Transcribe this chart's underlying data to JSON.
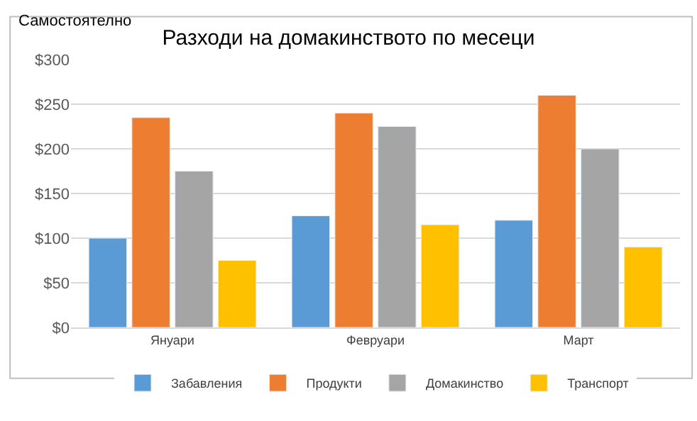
{
  "chart_data": {
    "type": "bar",
    "title": "Разходи на домакинството по месеци",
    "categories": [
      "Януари",
      "Февруари",
      "Март"
    ],
    "series": [
      {
        "name": "Забавления",
        "color": "#5b9bd5",
        "values": [
          100,
          125,
          120
        ]
      },
      {
        "name": "Продукти",
        "color": "#ed7d31",
        "values": [
          235,
          240,
          260
        ]
      },
      {
        "name": "Домакинство",
        "color": "#a5a5a5",
        "values": [
          175,
          225,
          200
        ]
      },
      {
        "name": "Транспорт",
        "color": "#ffc000",
        "values": [
          75,
          115,
          90
        ]
      }
    ],
    "ylim": [
      0,
      300
    ],
    "yticks": [
      {
        "value": 0,
        "label": "$0"
      },
      {
        "value": 50,
        "label": "$50"
      },
      {
        "value": 100,
        "label": "$100"
      },
      {
        "value": 150,
        "label": "$150"
      },
      {
        "value": 200,
        "label": "$200"
      },
      {
        "value": 250,
        "label": "$250"
      },
      {
        "value": 300,
        "label": "$300"
      }
    ],
    "grid": "y",
    "legend": "bottom",
    "annotations": [
      "Самостоятелно"
    ]
  }
}
